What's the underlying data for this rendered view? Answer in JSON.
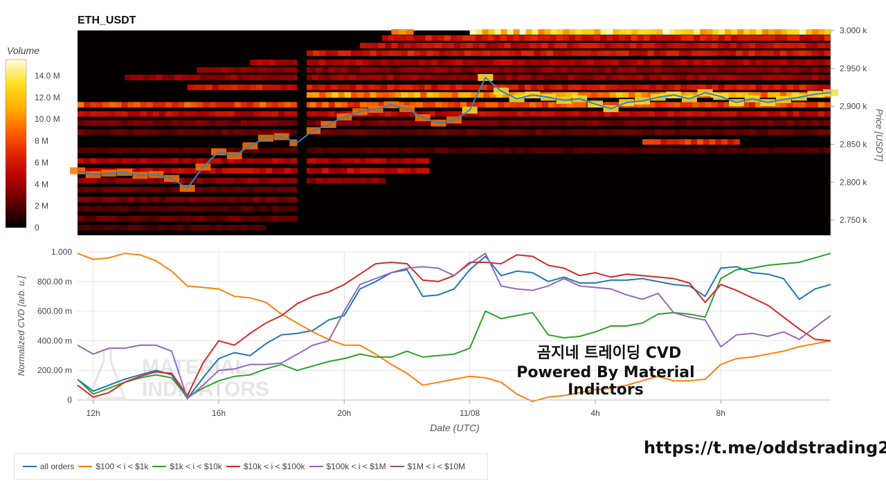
{
  "header": {
    "title": "ETH_USDT"
  },
  "colorbar": {
    "title": "Volume",
    "ticks": [
      "0",
      "2 M",
      "4 M",
      "6 M",
      "8 M",
      "10.0 M",
      "12.0 M",
      "14.0 M"
    ],
    "tick_values": [
      0,
      2,
      4,
      6,
      8,
      10,
      12,
      14
    ],
    "max": 15.5
  },
  "watermark": {
    "line1": "MATERIAL",
    "line2": "INDICATORS"
  },
  "overlay": {
    "line1": "곰지네 트레이딩 CVD",
    "line2": "Powered By Material Indictors"
  },
  "footer": {
    "link": "https://t.me/oddstrading2"
  },
  "legend": [
    {
      "label": "all orders",
      "color": "#1f77b4"
    },
    {
      "label": "$100 < i < $1k",
      "color": "#ff7f0e"
    },
    {
      "label": "$1k < i < $10k",
      "color": "#2ca02c"
    },
    {
      "label": "$10k < i < $100k",
      "color": "#d62728"
    },
    {
      "label": "$100k < i < $1M",
      "color": "#9467bd"
    },
    {
      "label": "$1M < i < $10M",
      "color": "#8c564b"
    }
  ],
  "chart_data": [
    {
      "type": "heatmap",
      "title": "ETH_USDT",
      "ylabel": "Price [USDT]",
      "ylim": [
        2730,
        3000
      ],
      "y_ticks": [
        "2.750 k",
        "2.800 k",
        "2.850 k",
        "2.900 k",
        "2.950 k",
        "3.000 k"
      ],
      "y_tick_values": [
        2750,
        2800,
        2850,
        2900,
        2950,
        3000
      ],
      "colorbar_title": "Volume",
      "colorbar_range": [
        0,
        15.5
      ],
      "colorscale": [
        "#000000",
        "#5a0000",
        "#b00000",
        "#e02000",
        "#ff6000",
        "#ffb000",
        "#ffe020",
        "#fffbe0"
      ],
      "x_range_hours": [
        11.5,
        35.5
      ],
      "price_series": {
        "name": "Price",
        "color": "#2e86c1",
        "x": [
          11.5,
          12,
          12.5,
          13,
          13.5,
          14,
          14.5,
          15,
          15.5,
          16,
          16.5,
          17,
          17.5,
          18,
          18.5,
          19,
          19.5,
          20,
          20.5,
          21,
          21.5,
          22,
          22.5,
          23,
          23.5,
          24,
          24.5,
          25,
          25.5,
          26,
          26.5,
          27,
          27.5,
          28,
          28.5,
          29,
          29.5,
          30,
          30.5,
          31,
          31.5,
          32,
          32.5,
          33,
          33.5,
          34,
          34.5,
          35,
          35.5
        ],
        "y": [
          2815,
          2810,
          2812,
          2813,
          2809,
          2810,
          2805,
          2792,
          2820,
          2840,
          2835,
          2848,
          2858,
          2860,
          2852,
          2868,
          2876,
          2886,
          2893,
          2896,
          2902,
          2897,
          2885,
          2878,
          2882,
          2895,
          2938,
          2920,
          2910,
          2915,
          2912,
          2908,
          2910,
          2903,
          2897,
          2905,
          2907,
          2912,
          2915,
          2910,
          2918,
          2913,
          2905,
          2910,
          2905,
          2909,
          2912,
          2916,
          2918
        ]
      },
      "volume_bands": [
        {
          "price": 2998,
          "vol": 12.5,
          "x_start": 21.5,
          "x_end": 22.2
        },
        {
          "price": 2998,
          "vol": 13,
          "x_start": 24,
          "x_end": 35.5
        },
        {
          "price": 2990,
          "vol": 6,
          "x_start": 21.2,
          "x_end": 35.5
        },
        {
          "price": 2980,
          "vol": 5.5,
          "x_start": 20.5,
          "x_end": 35.5
        },
        {
          "price": 2970,
          "vol": 6,
          "x_start": 18.6,
          "x_end": 35.5
        },
        {
          "price": 2958,
          "vol": 4.5,
          "x_start": 17,
          "x_end": 35.5
        },
        {
          "price": 2948,
          "vol": 3.5,
          "x_start": 15.3,
          "x_end": 35.5
        },
        {
          "price": 2938,
          "vol": 4,
          "x_start": 13,
          "x_end": 35.5
        },
        {
          "price": 2925,
          "vol": 6,
          "x_start": 15,
          "x_end": 35.5
        },
        {
          "price": 2915,
          "vol": 10.5,
          "x_start": 18.6,
          "x_end": 35.5
        },
        {
          "price": 2902,
          "vol": 8,
          "x_start": 11.5,
          "x_end": 35.5
        },
        {
          "price": 2890,
          "vol": 5,
          "x_start": 11.5,
          "x_end": 35.5
        },
        {
          "price": 2878,
          "vol": 3,
          "x_start": 11.5,
          "x_end": 35.5
        },
        {
          "price": 2866,
          "vol": 2.5,
          "x_start": 11.5,
          "x_end": 35.5
        },
        {
          "price": 2853,
          "vol": 7,
          "x_start": 29.5,
          "x_end": 32.6
        },
        {
          "price": 2842,
          "vol": 2,
          "x_start": 11.5,
          "x_end": 35.5
        },
        {
          "price": 2828,
          "vol": 4.5,
          "x_start": 11.5,
          "x_end": 22.7
        },
        {
          "price": 2815,
          "vol": 5,
          "x_start": 11.5,
          "x_end": 22.7
        },
        {
          "price": 2802,
          "vol": 3.5,
          "x_start": 11.5,
          "x_end": 21.3
        },
        {
          "price": 2790,
          "vol": 2.5,
          "x_start": 11.5,
          "x_end": 18.5
        },
        {
          "price": 2777,
          "vol": 3,
          "x_start": 11.5,
          "x_end": 18.5
        },
        {
          "price": 2765,
          "vol": 2,
          "x_start": 11.5,
          "x_end": 18.5
        },
        {
          "price": 2752,
          "vol": 2.5,
          "x_start": 11.5,
          "x_end": 18.5
        },
        {
          "price": 2740,
          "vol": 2,
          "x_start": 11.5,
          "x_end": 17.5
        }
      ],
      "gap_columns": [
        {
          "x_start": 18.5,
          "x_end": 18.8
        }
      ]
    },
    {
      "type": "line",
      "xlabel": "Date (UTC)",
      "ylabel": "Normalized CVD [arb. u.]",
      "ylim": [
        0,
        1
      ],
      "y_ticks": [
        "0",
        "200.00 m",
        "400.00 m",
        "600.00 m",
        "800.00 m",
        "1.000"
      ],
      "y_tick_values": [
        0,
        0.2,
        0.4,
        0.6,
        0.8,
        1.0
      ],
      "x_ticks": [
        "12h",
        "16h",
        "20h",
        "11/08",
        "4h",
        "8h"
      ],
      "x_tick_values": [
        12,
        16,
        20,
        24,
        28,
        32
      ],
      "xlim": [
        11.5,
        35.5
      ],
      "x": [
        11.5,
        12,
        12.5,
        13,
        13.5,
        14,
        14.5,
        15,
        15.5,
        16,
        16.5,
        17,
        17.5,
        18,
        18.5,
        19,
        19.5,
        20,
        20.5,
        21,
        21.5,
        22,
        22.5,
        23,
        23.5,
        24,
        24.5,
        25,
        25.5,
        26,
        26.5,
        27,
        27.5,
        28,
        28.5,
        29,
        29.5,
        30,
        30.5,
        31,
        31.5,
        32,
        32.5,
        33,
        33.5,
        34,
        34.5,
        35,
        35.5
      ],
      "series": [
        {
          "name": "all orders",
          "color": "#1f77b4",
          "values": [
            0.14,
            0.06,
            0.1,
            0.14,
            0.17,
            0.2,
            0.17,
            0.01,
            0.15,
            0.28,
            0.32,
            0.3,
            0.38,
            0.44,
            0.45,
            0.47,
            0.54,
            0.57,
            0.75,
            0.8,
            0.86,
            0.88,
            0.7,
            0.71,
            0.75,
            0.88,
            0.97,
            0.84,
            0.87,
            0.86,
            0.8,
            0.83,
            0.79,
            0.79,
            0.81,
            0.81,
            0.82,
            0.8,
            0.78,
            0.77,
            0.7,
            0.89,
            0.9,
            0.86,
            0.85,
            0.82,
            0.68,
            0.75,
            0.78
          ]
        },
        {
          "name": "$100 < i < $1k",
          "color": "#ff7f0e",
          "values": [
            0.99,
            0.95,
            0.96,
            0.99,
            0.98,
            0.94,
            0.87,
            0.77,
            0.76,
            0.75,
            0.7,
            0.69,
            0.66,
            0.58,
            0.52,
            0.46,
            0.41,
            0.37,
            0.37,
            0.31,
            0.24,
            0.18,
            0.1,
            0.12,
            0.14,
            0.16,
            0.15,
            0.12,
            0.04,
            -0.01,
            0.02,
            0.03,
            0.05,
            0.07,
            0.08,
            0.1,
            0.13,
            0.16,
            0.13,
            0.13,
            0.14,
            0.24,
            0.28,
            0.29,
            0.31,
            0.33,
            0.36,
            0.38,
            0.4
          ]
        },
        {
          "name": "$1k < i < $10k",
          "color": "#2ca02c",
          "values": [
            0.14,
            0.04,
            0.08,
            0.12,
            0.15,
            0.17,
            0.15,
            0.02,
            0.08,
            0.13,
            0.16,
            0.17,
            0.21,
            0.24,
            0.2,
            0.23,
            0.26,
            0.28,
            0.31,
            0.29,
            0.29,
            0.33,
            0.29,
            0.3,
            0.31,
            0.35,
            0.6,
            0.55,
            0.57,
            0.59,
            0.44,
            0.42,
            0.43,
            0.46,
            0.5,
            0.5,
            0.52,
            0.58,
            0.59,
            0.58,
            0.56,
            0.82,
            0.88,
            0.89,
            0.91,
            0.92,
            0.93,
            0.96,
            0.99
          ]
        },
        {
          "name": "$10k < i < $100k",
          "color": "#d62728",
          "values": [
            0.1,
            0.02,
            0.05,
            0.12,
            0.16,
            0.19,
            0.18,
            0.03,
            0.25,
            0.4,
            0.37,
            0.45,
            0.52,
            0.57,
            0.65,
            0.7,
            0.73,
            0.78,
            0.85,
            0.92,
            0.93,
            0.92,
            0.81,
            0.8,
            0.84,
            0.93,
            0.93,
            0.92,
            0.98,
            0.97,
            0.91,
            0.89,
            0.84,
            0.86,
            0.83,
            0.85,
            0.84,
            0.83,
            0.82,
            0.79,
            0.66,
            0.78,
            0.74,
            0.69,
            0.64,
            0.56,
            0.48,
            0.41,
            0.4
          ]
        },
        {
          "name": "$100k < i < $1M",
          "color": "#9467bd",
          "values": [
            0.37,
            0.31,
            0.35,
            0.35,
            0.37,
            0.37,
            0.33,
            0.01,
            0.1,
            0.2,
            0.21,
            0.24,
            0.24,
            0.25,
            0.31,
            0.37,
            0.4,
            0.6,
            0.78,
            0.82,
            0.86,
            0.89,
            0.9,
            0.89,
            0.84,
            0.92,
            0.99,
            0.77,
            0.75,
            0.74,
            0.77,
            0.82,
            0.77,
            0.76,
            0.75,
            0.71,
            0.68,
            0.72,
            0.59,
            0.56,
            0.54,
            0.36,
            0.44,
            0.45,
            0.43,
            0.46,
            0.41,
            0.49,
            0.57
          ]
        },
        {
          "name": "$1M < i < $10M",
          "color": "#8c564b",
          "values": [
            null,
            null,
            null,
            null,
            null,
            null,
            null,
            null,
            null,
            null,
            null,
            null,
            null,
            null,
            null,
            null,
            null,
            null,
            null,
            null,
            null,
            null,
            null,
            null,
            null,
            null,
            null,
            null,
            null,
            null,
            null,
            null,
            null,
            null,
            null,
            null,
            null,
            null,
            null,
            null,
            null,
            null,
            null,
            null,
            null,
            null,
            null,
            null,
            null
          ]
        }
      ]
    }
  ]
}
